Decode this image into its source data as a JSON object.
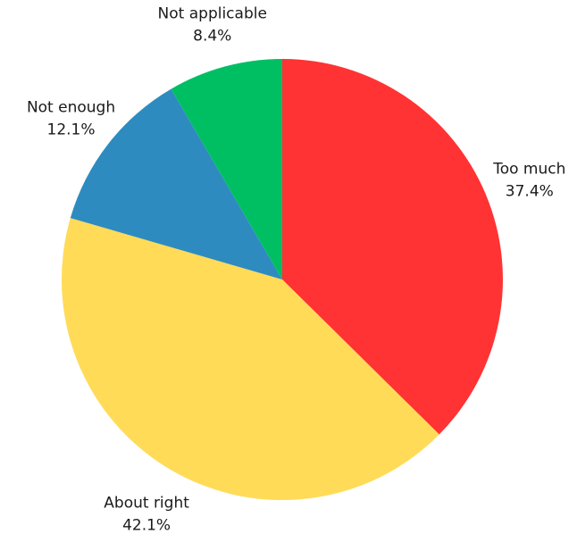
{
  "chart_data": {
    "type": "pie",
    "title": "",
    "start_angle": "12 o'clock, clockwise",
    "slices": [
      {
        "label": "Too much",
        "value": 37.4,
        "value_label": "37.4%",
        "color": "#ff3333"
      },
      {
        "label": "About right",
        "value": 42.1,
        "value_label": "42.1%",
        "color": "#ffdb58"
      },
      {
        "label": "Not enough",
        "value": 12.1,
        "value_label": "12.1%",
        "color": "#2e8bc0"
      },
      {
        "label": "Not applicable",
        "value": 8.4,
        "value_label": "8.4%",
        "color": "#00bf63"
      }
    ],
    "legend": "none (labels outside slices)"
  }
}
